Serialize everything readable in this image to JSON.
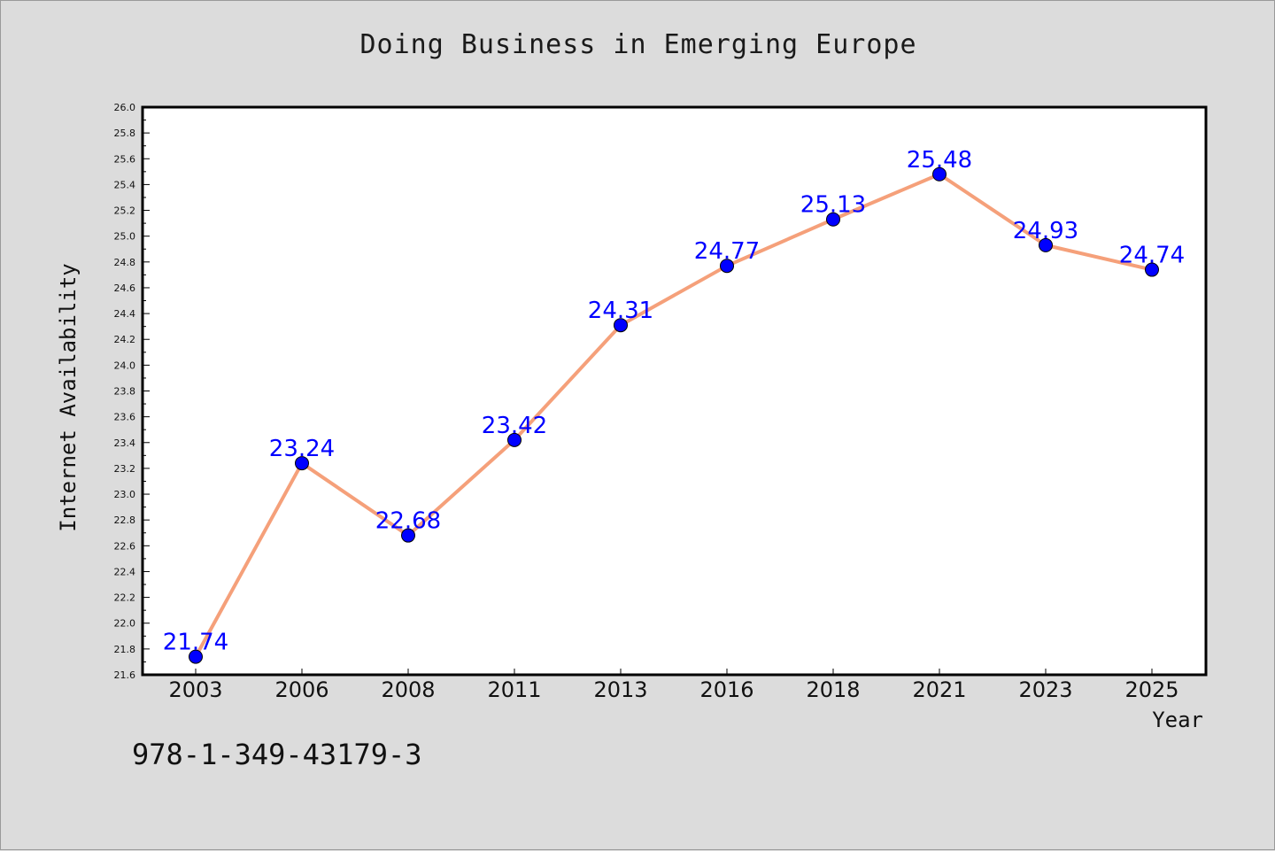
{
  "chart_data": {
    "type": "line",
    "title": "Doing Business in Emerging Europe",
    "xlabel": "Year",
    "ylabel": "Internet Availability",
    "categories": [
      "2003",
      "2006",
      "2008",
      "2011",
      "2013",
      "2016",
      "2018",
      "2021",
      "2023",
      "2025"
    ],
    "values": [
      21.74,
      23.24,
      22.68,
      23.42,
      24.31,
      24.77,
      25.13,
      25.48,
      24.93,
      24.74
    ],
    "value_labels": [
      "21.74",
      "23.24",
      "22.68",
      "23.42",
      "24.31",
      "24.77",
      "25.13",
      "25.48",
      "24.93",
      "24.74"
    ],
    "ylim": [
      21.6,
      26.0
    ],
    "ytick_labels": [
      "21.6",
      "21.8",
      "22.0",
      "22.2",
      "22.4",
      "22.6",
      "22.8",
      "23.0",
      "23.2",
      "23.4",
      "23.6",
      "23.8",
      "24.0",
      "24.2",
      "24.4",
      "24.6",
      "24.8",
      "25.0",
      "25.2",
      "25.4",
      "25.6",
      "25.8",
      "26.0"
    ],
    "grid": false,
    "line_color": "#f5a07a",
    "marker_color": "#0000ff",
    "label_color": "#0000ff"
  },
  "footer": {
    "isbn": "978-1-349-43179-3"
  }
}
